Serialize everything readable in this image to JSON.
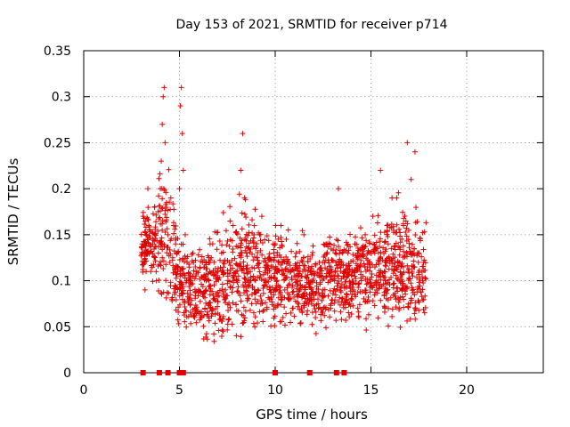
{
  "chart_data": {
    "type": "scatter",
    "title": "Day 153 of 2021, SRMTID for receiver p714",
    "xlabel": "GPS time / hours",
    "ylabel": "SRMTID / TECUs",
    "xlim": [
      0,
      24
    ],
    "ylim": [
      0,
      0.35
    ],
    "xticks": [
      0,
      5,
      10,
      15,
      20
    ],
    "xtick_labels": [
      "0",
      "5",
      "10",
      "15",
      "20"
    ],
    "yticks": [
      0,
      0.05,
      0.1,
      0.15,
      0.2,
      0.25,
      0.3,
      0.35
    ],
    "ytick_labels": [
      "0",
      "0.05",
      "0.1",
      "0.15",
      "0.2",
      "0.25",
      "0.3",
      "0.35"
    ],
    "grid": true,
    "marker": "plus",
    "series": [
      {
        "name": "SRMTID",
        "color": "#e00000",
        "x": [
          3.05,
          3.1,
          3.15,
          3.2,
          3.25,
          3.3,
          3.35,
          3.4,
          3.5,
          3.6,
          3.7,
          3.8,
          3.9,
          4.0,
          4.05,
          4.1,
          4.15,
          4.2,
          4.25,
          4.3,
          4.4,
          4.5,
          4.55,
          4.6,
          4.7,
          4.8,
          4.9,
          5.0,
          5.05,
          5.1,
          5.15,
          5.2,
          5.3,
          5.4,
          5.5,
          5.6,
          5.7,
          5.8,
          5.9,
          6.0,
          6.2,
          6.4,
          6.6,
          6.8,
          7.0,
          7.2,
          7.4,
          7.6,
          7.8,
          8.0,
          8.2,
          8.3,
          8.4,
          8.5,
          8.7,
          8.9,
          9.1,
          9.3,
          9.5,
          9.7,
          9.9,
          10.1,
          10.3,
          10.5,
          10.7,
          10.9,
          11.1,
          11.3,
          11.5,
          11.7,
          11.9,
          12.1,
          12.3,
          12.5,
          12.7,
          12.9,
          13.1,
          13.3,
          13.5,
          13.7,
          13.9,
          14.1,
          14.3,
          14.5,
          14.7,
          14.9,
          15.1,
          15.3,
          15.5,
          15.7,
          15.9,
          16.1,
          16.3,
          16.5,
          16.7,
          16.9,
          17.1,
          17.3,
          17.5,
          17.7
        ],
        "values": [
          0.14,
          0.17,
          0.12,
          0.09,
          0.15,
          0.13,
          0.2,
          0.16,
          0.11,
          0.14,
          0.18,
          0.1,
          0.13,
          0.2,
          0.23,
          0.27,
          0.3,
          0.31,
          0.25,
          0.18,
          0.15,
          0.12,
          0.19,
          0.08,
          0.16,
          0.14,
          0.11,
          0.2,
          0.29,
          0.31,
          0.26,
          0.22,
          0.15,
          0.12,
          0.08,
          0.1,
          0.13,
          0.07,
          0.11,
          0.09,
          0.12,
          0.1,
          0.14,
          0.08,
          0.11,
          0.13,
          0.09,
          0.12,
          0.16,
          0.1,
          0.22,
          0.26,
          0.19,
          0.13,
          0.11,
          0.15,
          0.09,
          0.17,
          0.12,
          0.08,
          0.14,
          0.11,
          0.16,
          0.09,
          0.12,
          0.07,
          0.13,
          0.1,
          0.15,
          0.08,
          0.11,
          0.06,
          0.12,
          0.09,
          0.14,
          0.07,
          0.1,
          0.2,
          0.13,
          0.08,
          0.11,
          0.09,
          0.13,
          0.1,
          0.15,
          0.12,
          0.17,
          0.09,
          0.22,
          0.11,
          0.14,
          0.19,
          0.08,
          0.12,
          0.16,
          0.25,
          0.21,
          0.24,
          0.13,
          0.1
        ],
        "note": "dense scatter ~1800 points between ~3h and ~18h; values shown are representative samples",
        "band_min_y": [
          0.09,
          0.09,
          0.08,
          0.08,
          0.05,
          0.04,
          0.03,
          0.03,
          0.04,
          0.04,
          0.03,
          0.04,
          0.04,
          0.03,
          0.03,
          0.03,
          0.04,
          0.05,
          0.04,
          0.06
        ],
        "band_max_y": [
          0.2,
          0.2,
          0.32,
          0.31,
          0.2,
          0.16,
          0.19,
          0.22,
          0.26,
          0.2,
          0.19,
          0.18,
          0.17,
          0.16,
          0.21,
          0.16,
          0.22,
          0.2,
          0.25,
          0.25
        ],
        "band_center_y": [
          0.14,
          0.14,
          0.15,
          0.14,
          0.1,
          0.09,
          0.09,
          0.1,
          0.12,
          0.11,
          0.1,
          0.1,
          0.1,
          0.09,
          0.1,
          0.1,
          0.11,
          0.11,
          0.12,
          0.11
        ],
        "band_x": [
          3.0,
          3.5,
          4.0,
          4.5,
          5.0,
          5.5,
          6.5,
          7.5,
          8.5,
          9.5,
          10.5,
          11.0,
          11.5,
          12.5,
          13.0,
          13.5,
          14.5,
          15.5,
          16.5,
          17.5
        ]
      }
    ],
    "zero_markers": {
      "x": [
        3.1,
        3.95,
        4.4,
        5.0,
        5.2,
        10.0,
        11.8,
        13.2,
        13.6
      ],
      "color": "#e00000"
    }
  }
}
